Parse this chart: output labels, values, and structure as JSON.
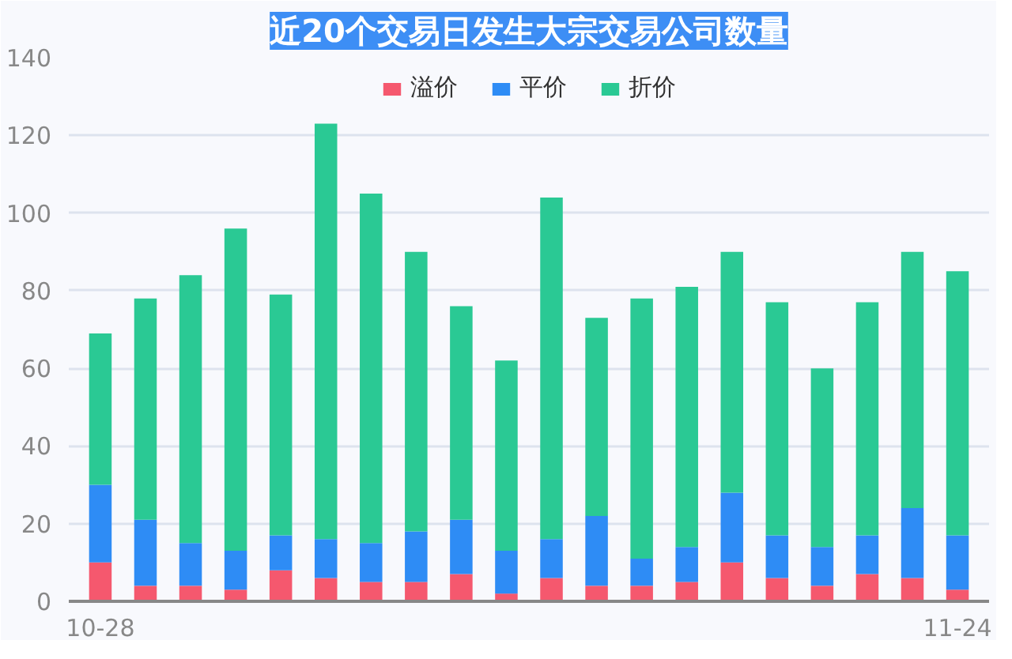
{
  "chart_data": {
    "type": "bar",
    "title": "近20个交易日发生大宗交易公司数量",
    "stacked": true,
    "categories": [
      "10-28",
      null,
      null,
      null,
      null,
      null,
      null,
      null,
      null,
      null,
      null,
      null,
      null,
      null,
      null,
      null,
      null,
      null,
      null,
      "11-24"
    ],
    "series": [
      {
        "name": "溢价",
        "color": "#f5586e",
        "values": [
          10,
          4,
          4,
          3,
          8,
          6,
          5,
          5,
          7,
          2,
          6,
          4,
          4,
          5,
          10,
          6,
          4,
          7,
          6,
          3
        ]
      },
      {
        "name": "平价",
        "color": "#2e8cf5",
        "values": [
          20,
          17,
          11,
          10,
          9,
          10,
          10,
          13,
          14,
          11,
          10,
          18,
          7,
          9,
          18,
          11,
          10,
          10,
          18,
          14
        ]
      },
      {
        "name": "折价",
        "color": "#2ac994",
        "values": [
          39,
          57,
          69,
          83,
          62,
          107,
          90,
          72,
          55,
          49,
          88,
          51,
          67,
          67,
          62,
          60,
          46,
          60,
          66,
          68
        ]
      }
    ],
    "ylim": [
      0,
      140
    ],
    "yticks": [
      0,
      20,
      40,
      60,
      80,
      100,
      120,
      140
    ],
    "grid": "y",
    "legend": "top"
  }
}
